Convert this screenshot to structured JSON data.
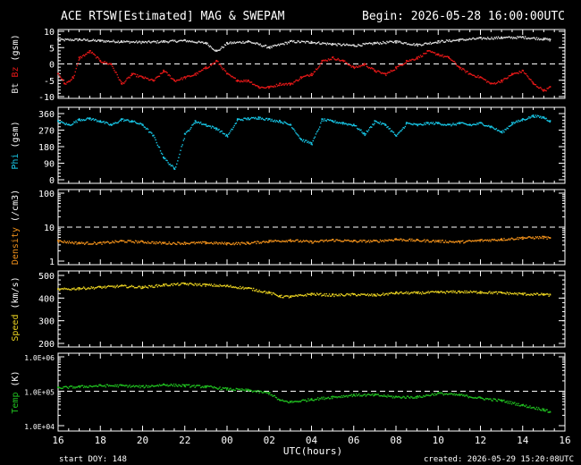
{
  "header": {
    "title": "ACE RTSW[Estimated] MAG & SWEPAM",
    "begin": "Begin: 2026-05-28 16:00:00UTC"
  },
  "footer": {
    "xlabel": "UTC(hours)",
    "start_doy": "start DOY: 148",
    "created": "created: 2026-05-29 15:20:08UTC"
  },
  "colors": {
    "bt": "#e0e0e0",
    "bz": "#e81818",
    "phi": "#18c8e8",
    "density": "#f0901a",
    "speed": "#e8d020",
    "temp": "#20c020",
    "axes": "#ffffff"
  },
  "chart_data": [
    {
      "type": "scatter",
      "panel": "mag",
      "ylabel_parts": [
        "Bt",
        "Bz",
        "(gsm)"
      ],
      "xlim": [
        0,
        24
      ],
      "ylim": [
        -10,
        10
      ],
      "yticks": [
        -10,
        -5,
        0,
        5,
        10
      ],
      "ytick_labels": [
        "-10",
        "-5",
        "0",
        "5",
        "10"
      ],
      "ref_line": 0,
      "series": [
        {
          "name": "Bt",
          "x": [
            0.0,
            1.0,
            2.0,
            3.0,
            4.0,
            5.0,
            6.0,
            7.0,
            7.5,
            8.0,
            9.0,
            10.0,
            11.0,
            12.0,
            13.0,
            14.0,
            15.0,
            16.0,
            17.0,
            18.0,
            19.0,
            20.0,
            21.0,
            22.0,
            23.0,
            23.3
          ],
          "y": [
            7.5,
            7.6,
            7.2,
            7.0,
            6.8,
            7.0,
            7.3,
            6.5,
            4.0,
            6.5,
            7.0,
            5.2,
            7.0,
            6.8,
            6.2,
            5.8,
            6.5,
            7.0,
            6.0,
            7.0,
            7.5,
            8.0,
            8.2,
            8.3,
            7.8,
            7.5
          ]
        },
        {
          "name": "Bz",
          "x": [
            0.0,
            0.3,
            0.7,
            1.0,
            1.5,
            2.0,
            2.5,
            3.0,
            3.5,
            4.0,
            4.5,
            5.0,
            5.5,
            6.0,
            6.5,
            7.0,
            7.5,
            8.0,
            8.5,
            9.0,
            9.5,
            10.0,
            10.5,
            11.0,
            11.5,
            12.0,
            12.5,
            13.0,
            13.5,
            14.0,
            14.5,
            15.0,
            15.5,
            16.0,
            16.5,
            17.0,
            17.5,
            18.0,
            18.5,
            19.0,
            19.5,
            20.0,
            20.5,
            21.0,
            21.5,
            22.0,
            22.5,
            23.0,
            23.3
          ],
          "y": [
            -3,
            -6,
            -4,
            2,
            4,
            1,
            0,
            -6,
            -3,
            -4,
            -5,
            -2,
            -5,
            -4,
            -3,
            -1,
            1,
            -3,
            -5,
            -5,
            -7,
            -7,
            -6,
            -6,
            -4,
            -3,
            1,
            2,
            1,
            -1,
            0,
            -2,
            -3,
            -1,
            1,
            2,
            4,
            3,
            2,
            -1,
            -3,
            -4,
            -6,
            -5,
            -3,
            -2,
            -6,
            -8,
            -7
          ]
        }
      ]
    },
    {
      "type": "scatter",
      "panel": "phi",
      "ylabel_parts": [
        "Phi",
        "(gsm)"
      ],
      "xlim": [
        0,
        24
      ],
      "ylim": [
        0,
        360
      ],
      "yticks": [
        0,
        90,
        180,
        270,
        360
      ],
      "ytick_labels": [
        "0",
        "90",
        "180",
        "270",
        "360"
      ],
      "series": [
        {
          "name": "Phi",
          "x": [
            0.0,
            0.5,
            1.0,
            1.5,
            2.0,
            2.5,
            3.0,
            3.5,
            4.0,
            4.5,
            5.0,
            5.5,
            6.0,
            6.5,
            7.0,
            7.5,
            8.0,
            8.5,
            9.0,
            9.5,
            10.0,
            10.5,
            11.0,
            11.5,
            12.0,
            12.5,
            13.0,
            13.5,
            14.0,
            14.5,
            15.0,
            15.5,
            16.0,
            16.5,
            17.0,
            17.5,
            18.0,
            18.5,
            19.0,
            19.5,
            20.0,
            20.5,
            21.0,
            21.5,
            22.0,
            22.5,
            23.0,
            23.3
          ],
          "y": [
            320,
            300,
            330,
            335,
            320,
            300,
            330,
            320,
            300,
            240,
            120,
            60,
            250,
            320,
            300,
            280,
            240,
            330,
            335,
            340,
            330,
            320,
            300,
            220,
            200,
            330,
            320,
            310,
            300,
            250,
            320,
            300,
            240,
            310,
            300,
            310,
            310,
            300,
            310,
            300,
            310,
            290,
            260,
            310,
            330,
            350,
            340,
            320
          ]
        }
      ]
    },
    {
      "type": "scatter",
      "panel": "density",
      "ylabel_parts": [
        "Density",
        "(/cm3)"
      ],
      "scale": "log",
      "xlim": [
        0,
        24
      ],
      "ylim": [
        1,
        100
      ],
      "yticks": [
        1,
        10,
        100
      ],
      "ytick_labels": [
        "1",
        "10",
        "100"
      ],
      "ref_line": 10,
      "series": [
        {
          "name": "Density",
          "x": [
            0.0,
            1.0,
            2.0,
            3.0,
            4.0,
            5.0,
            6.0,
            7.0,
            8.0,
            9.0,
            10.0,
            11.0,
            12.0,
            13.0,
            14.0,
            15.0,
            16.0,
            17.0,
            18.0,
            19.0,
            20.0,
            21.0,
            22.0,
            23.0,
            23.3
          ],
          "y": [
            4.0,
            3.5,
            3.5,
            4.0,
            3.8,
            3.5,
            3.5,
            3.6,
            3.4,
            3.5,
            4.0,
            4.2,
            3.8,
            4.3,
            4.0,
            4.0,
            4.5,
            4.2,
            4.0,
            3.8,
            4.2,
            4.5,
            5.0,
            5.2,
            4.8
          ]
        }
      ]
    },
    {
      "type": "scatter",
      "panel": "speed",
      "ylabel_parts": [
        "Speed",
        "(km/s)"
      ],
      "xlim": [
        0,
        24
      ],
      "ylim": [
        200,
        500
      ],
      "yticks": [
        200,
        300,
        400,
        500
      ],
      "ytick_labels": [
        "200",
        "300",
        "400",
        "500"
      ],
      "series": [
        {
          "name": "Speed",
          "x": [
            0.0,
            1.0,
            2.0,
            3.0,
            4.0,
            5.0,
            6.0,
            7.0,
            8.0,
            9.0,
            10.0,
            10.5,
            11.0,
            12.0,
            13.0,
            14.0,
            15.0,
            16.0,
            17.0,
            18.0,
            19.0,
            20.0,
            21.0,
            22.0,
            23.0,
            23.3
          ],
          "y": [
            440,
            445,
            450,
            455,
            450,
            460,
            465,
            460,
            455,
            445,
            425,
            410,
            408,
            420,
            415,
            418,
            415,
            425,
            425,
            428,
            430,
            428,
            425,
            420,
            418,
            415
          ]
        }
      ]
    },
    {
      "type": "scatter",
      "panel": "temp",
      "ylabel_parts": [
        "Temp",
        "(K)"
      ],
      "scale": "log",
      "xlim": [
        0,
        24
      ],
      "ylim": [
        10000,
        1000000
      ],
      "yticks": [
        10000,
        100000,
        1000000
      ],
      "ytick_labels": [
        "1.0E+04",
        "1.0E+05",
        "1.0E+06"
      ],
      "ref_line": 100000,
      "series": [
        {
          "name": "Temp",
          "x": [
            0.0,
            1.0,
            2.0,
            3.0,
            4.0,
            5.0,
            6.0,
            7.0,
            8.0,
            9.0,
            10.0,
            10.5,
            11.0,
            12.0,
            13.0,
            14.0,
            15.0,
            16.0,
            17.0,
            18.0,
            19.0,
            20.0,
            21.0,
            22.0,
            23.0,
            23.3
          ],
          "y": [
            130000,
            140000,
            150000,
            150000,
            140000,
            160000,
            150000,
            140000,
            120000,
            110000,
            90000,
            55000,
            50000,
            60000,
            70000,
            80000,
            80000,
            70000,
            70000,
            90000,
            80000,
            65000,
            55000,
            40000,
            30000,
            25000
          ]
        }
      ]
    }
  ],
  "xaxis": {
    "tick_labels": [
      "16",
      "18",
      "20",
      "22",
      "00",
      "02",
      "04",
      "06",
      "08",
      "10",
      "12",
      "14",
      "16"
    ]
  }
}
